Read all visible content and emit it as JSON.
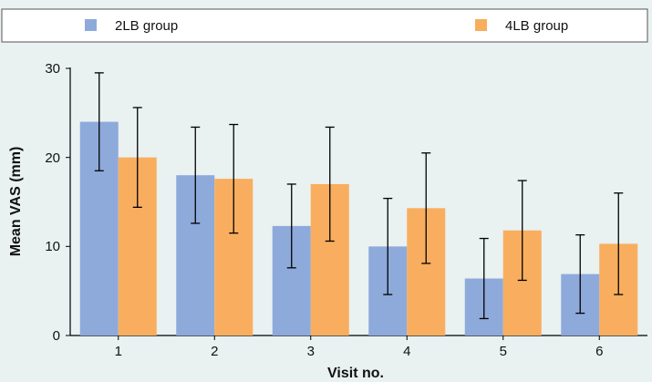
{
  "chart_data": {
    "type": "bar",
    "categories": [
      "1",
      "2",
      "3",
      "4",
      "5",
      "6"
    ],
    "series": [
      {
        "name": "2LB group",
        "color": "#8eaadb",
        "values": [
          24.0,
          18.0,
          12.3,
          10.0,
          6.4,
          6.9
        ],
        "error": [
          5.5,
          5.4,
          4.7,
          5.4,
          4.5,
          4.4
        ]
      },
      {
        "name": "4LB group",
        "color": "#f8ae5e",
        "values": [
          20.0,
          17.6,
          17.0,
          14.3,
          11.8,
          10.3
        ],
        "error": [
          5.6,
          6.1,
          6.4,
          6.2,
          5.6,
          5.7
        ]
      }
    ],
    "xlabel": "Visit no.",
    "ylabel": "Mean VAS (mm)",
    "ylim": [
      0,
      30
    ],
    "yticks": [
      "0",
      "10",
      "20",
      "30"
    ],
    "grid": false,
    "legend_position": "top"
  }
}
